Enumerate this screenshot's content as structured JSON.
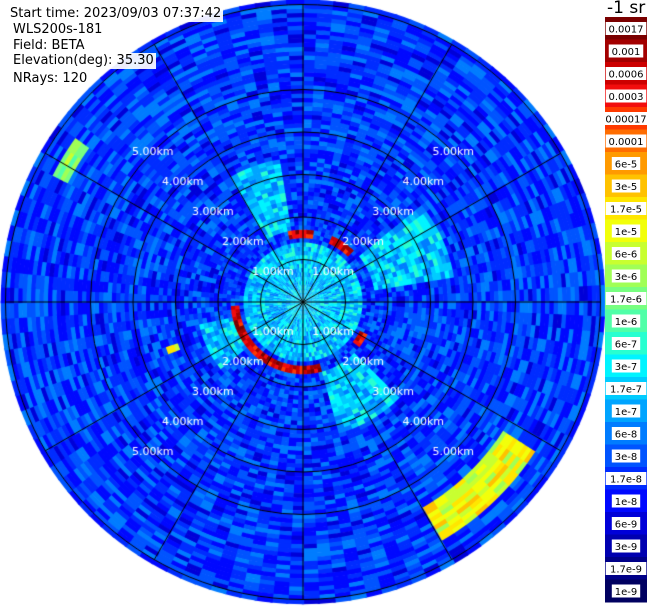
{
  "info": {
    "start_time": "Start time: 2023/09/03 07:37:42",
    "instrument": "WLS200s-181",
    "field": "Field: BETA",
    "elevation": "Elevation(deg): 35.30",
    "nrays": "NRays: 120"
  },
  "colorbar": {
    "unit_label": "-1 sr",
    "ticks": [
      "0.0017",
      "0.001",
      "0.0006",
      "0.0003",
      "0.00017",
      "0.0001",
      "6e-5",
      "3e-5",
      "1.7e-5",
      "1e-5",
      "6e-6",
      "3e-6",
      "1.7e-6",
      "1e-6",
      "6e-7",
      "3e-7",
      "1.7e-7",
      "1e-7",
      "6e-8",
      "3e-8",
      "1.7e-8",
      "1e-8",
      "6e-9",
      "3e-9",
      "1.7e-9",
      "1e-9"
    ],
    "colors": [
      "#7a0000",
      "#a30000",
      "#cc0000",
      "#f20d0d",
      "#ff3a00",
      "#ff6d00",
      "#ff9a00",
      "#ffc200",
      "#ffe600",
      "#f2ff0a",
      "#c8ff30",
      "#a0ff56",
      "#78ff80",
      "#50ffa8",
      "#28ffd0",
      "#00f4ff",
      "#00ccff",
      "#00a4ff",
      "#007cff",
      "#0054ff",
      "#002cff",
      "#0008ff",
      "#0000d8",
      "#0000b0",
      "#000088",
      "#000060"
    ]
  },
  "chart_data": {
    "type": "heatmap",
    "projection": "polar (plan position indicator)",
    "field": "BETA",
    "units": "sr-1",
    "scale": "log",
    "vmin": 1e-09,
    "vmax": 0.0017,
    "elevation_deg": 35.3,
    "n_rays": 120,
    "range_rings_km": [
      1.0,
      2.0,
      3.0,
      4.0,
      5.0
    ],
    "ring_labels": [
      "1.00km",
      "2.00km",
      "3.00km",
      "4.00km",
      "5.00km"
    ],
    "max_range_km": 7.0,
    "spokes_deg": [
      0,
      30,
      60,
      90,
      120,
      150,
      180,
      210,
      240,
      270,
      300,
      330
    ],
    "background_value": 2e-08,
    "near_field": {
      "range_km": [
        0.0,
        1.45
      ],
      "value": 1.7e-07
    },
    "cloud_ring": {
      "range_km": [
        1.55,
        1.7
      ],
      "value": 0.0006,
      "azimuth_segments_deg": [
        [
          -12,
          10
        ],
        [
          25,
          45
        ],
        [
          118,
          128
        ],
        [
          165,
          268
        ]
      ]
    },
    "bright_sectors": [
      {
        "azimuth_deg": [
          -30,
          -8
        ],
        "range_km": [
          1.7,
          3.4
        ],
        "value": 1.7e-07
      },
      {
        "azimuth_deg": [
          50,
          80
        ],
        "range_km": [
          1.7,
          3.6
        ],
        "value": 1.7e-07
      },
      {
        "azimuth_deg": [
          135,
          165
        ],
        "range_km": [
          1.7,
          3.2
        ],
        "value": 1.7e-07
      },
      {
        "azimuth_deg": [
          230,
          258
        ],
        "range_km": [
          1.7,
          2.5
        ],
        "value": 1.7e-07
      }
    ],
    "hotspots": [
      {
        "azimuth_deg": [
          124,
          150
        ],
        "range_km": [
          5.6,
          6.5
        ],
        "value": 1e-05
      },
      {
        "azimuth_deg": [
          298,
          306
        ],
        "range_km": [
          6.2,
          6.6
        ],
        "value": 3e-06
      },
      {
        "azimuth_deg": [
          249,
          252
        ],
        "range_km": [
          3.1,
          3.4
        ],
        "value": 6e-06
      }
    ]
  }
}
